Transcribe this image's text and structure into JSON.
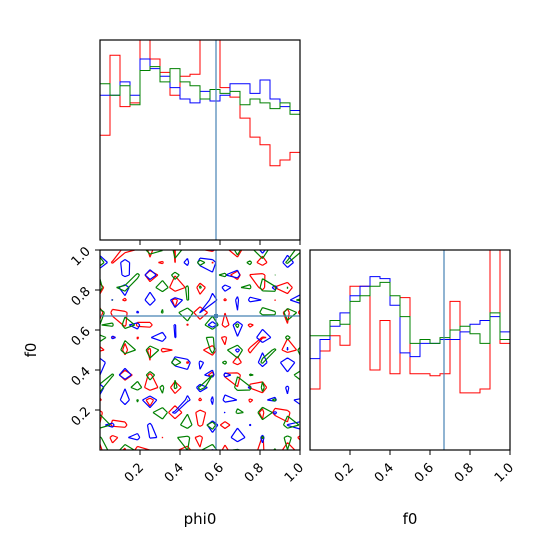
{
  "chart_data": {
    "type": "corner",
    "parameters": [
      "phi0",
      "f0"
    ],
    "truth": {
      "phi0": 0.58,
      "f0": 0.67
    },
    "colors": {
      "red": "#ff0000",
      "blue": "#0000ff",
      "green": "#008000",
      "truth": "#4682b4"
    },
    "panels": {
      "hist_phi0": {
        "type": "step-histogram",
        "xlim": [
          0,
          1
        ],
        "bins": [
          0.0,
          0.05,
          0.1,
          0.15,
          0.2,
          0.25,
          0.3,
          0.35,
          0.4,
          0.45,
          0.5,
          0.55,
          0.6,
          0.65,
          0.7,
          0.75,
          0.8,
          0.85,
          0.9,
          0.95,
          1.0
        ],
        "series": [
          {
            "color": "red",
            "values": [
              0.55,
              0.97,
              0.7,
              0.72,
              1.05,
              0.95,
              0.88,
              0.76,
              0.86,
              0.87,
              1.05,
              1.08,
              0.8,
              0.75,
              0.64,
              0.54,
              0.5,
              0.39,
              0.42,
              0.46
            ]
          },
          {
            "color": "blue",
            "values": [
              0.76,
              0.76,
              0.83,
              0.76,
              0.95,
              0.9,
              0.86,
              0.8,
              0.74,
              0.72,
              0.78,
              0.73,
              0.76,
              0.82,
              0.82,
              0.77,
              0.84,
              0.74,
              0.7,
              0.68
            ]
          },
          {
            "color": "green",
            "values": [
              0.82,
              0.76,
              0.81,
              0.71,
              0.89,
              0.91,
              0.83,
              0.9,
              0.83,
              0.81,
              0.74,
              0.79,
              0.77,
              0.78,
              0.71,
              0.74,
              0.72,
              0.69,
              0.72,
              0.66
            ]
          }
        ]
      },
      "hist_f0": {
        "type": "step-histogram",
        "xlim": [
          0,
          1
        ],
        "bins": [
          0.0,
          0.05,
          0.1,
          0.15,
          0.2,
          0.25,
          0.3,
          0.35,
          0.4,
          0.45,
          0.5,
          0.55,
          0.6,
          0.65,
          0.7,
          0.75,
          0.8,
          0.85,
          0.9,
          0.95,
          1.0
        ],
        "series": [
          {
            "color": "red",
            "values": [
              0.32,
              0.52,
              0.6,
              0.55,
              0.86,
              0.86,
              0.42,
              0.68,
              0.4,
              0.8,
              0.4,
              0.4,
              0.39,
              0.4,
              0.78,
              0.3,
              0.3,
              0.32,
              1.05,
              0.56
            ]
          },
          {
            "color": "blue",
            "values": [
              0.48,
              0.58,
              0.65,
              0.72,
              0.81,
              0.86,
              0.91,
              0.9,
              0.76,
              0.51,
              0.49,
              0.56,
              0.56,
              0.58,
              0.58,
              0.62,
              0.66,
              0.68,
              0.7,
              0.62
            ]
          },
          {
            "color": "green",
            "values": [
              0.6,
              0.6,
              0.68,
              0.66,
              0.78,
              0.81,
              0.86,
              0.88,
              0.81,
              0.7,
              0.56,
              0.58,
              0.56,
              0.59,
              0.63,
              0.65,
              0.61,
              0.56,
              0.72,
              0.58
            ]
          }
        ]
      },
      "scatter_contour": {
        "type": "contour",
        "xlim": [
          0,
          1
        ],
        "ylim": [
          0,
          1
        ],
        "xlabel": "phi0",
        "ylabel": "f0"
      }
    },
    "ticks": [
      "0.2",
      "0.4",
      "0.6",
      "0.8",
      "1.0"
    ],
    "tick_values": [
      0.2,
      0.4,
      0.6,
      0.8,
      1.0
    ],
    "xlabels": [
      "phi0",
      "f0"
    ]
  }
}
